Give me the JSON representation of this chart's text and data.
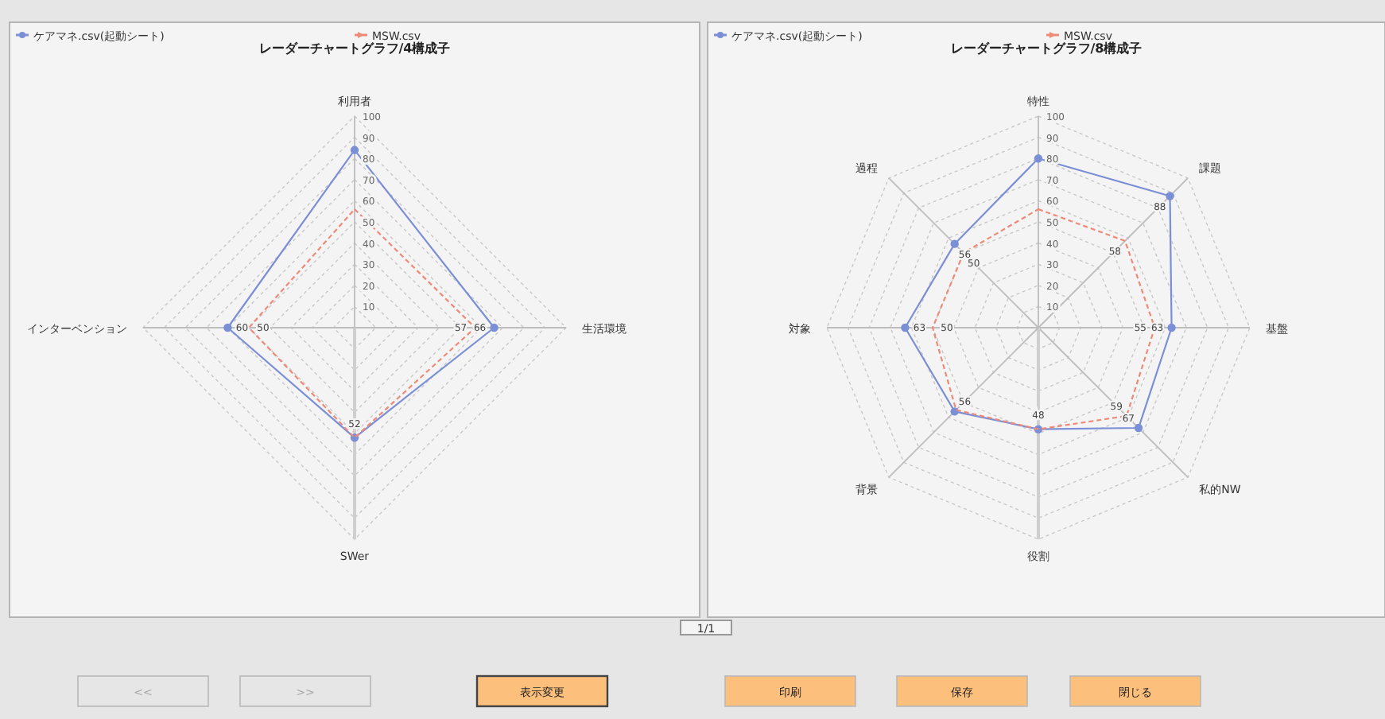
{
  "chart_data": [
    {
      "type": "radar",
      "title": "レーダーチャートグラフ/4構成子",
      "categories": [
        "利用者",
        "生活環境",
        "SWer",
        "インターベンション"
      ],
      "series": [
        {
          "name": "ケアマネ.csv(起動シート)",
          "color": "#7b8fd6",
          "values": [
            84,
            66,
            52,
            60
          ],
          "value_labels": [
            null,
            "66",
            "52",
            "60"
          ],
          "marker": "circle",
          "line_style": "solid"
        },
        {
          "name": "MSW.csv",
          "color": "#f08a78",
          "values": [
            56,
            57,
            52,
            50
          ],
          "value_labels": [
            null,
            "57",
            null,
            "50"
          ],
          "marker": "none",
          "line_style": "dashed"
        }
      ],
      "ylim": [
        0,
        100
      ],
      "yticks": [
        10,
        20,
        30,
        40,
        50,
        60,
        70,
        80,
        90,
        100
      ],
      "grid": true,
      "legend": "top"
    },
    {
      "type": "radar",
      "title": "レーダーチャートグラフ/8構成子",
      "categories": [
        "特性",
        "課題",
        "基盤",
        "私的NW",
        "役割",
        "背景",
        "対象",
        "過程"
      ],
      "series": [
        {
          "name": "ケアマネ.csv(起動シート)",
          "color": "#7b8fd6",
          "values": [
            80,
            88,
            63,
            67,
            48,
            56,
            63,
            56
          ],
          "value_labels": [
            null,
            "88",
            "63",
            "67",
            "48",
            "56",
            "63",
            "56"
          ],
          "marker": "circle",
          "line_style": "solid"
        },
        {
          "name": "MSW.csv",
          "color": "#f08a78",
          "values": [
            56,
            58,
            55,
            59,
            48,
            55,
            50,
            50
          ],
          "value_labels": [
            null,
            "58",
            "55",
            "59",
            null,
            null,
            "50",
            "50"
          ],
          "marker": "none",
          "line_style": "dashed"
        }
      ],
      "ylim": [
        0,
        100
      ],
      "yticks": [
        10,
        20,
        30,
        40,
        50,
        60,
        70,
        80,
        90,
        100
      ],
      "grid": true,
      "legend": "top"
    },
    {
      "type": "other",
      "annotations": [
        "1/1",
        "<<",
        ">>",
        "表示変更",
        "印刷",
        "保存",
        "閉じる"
      ]
    }
  ]
}
